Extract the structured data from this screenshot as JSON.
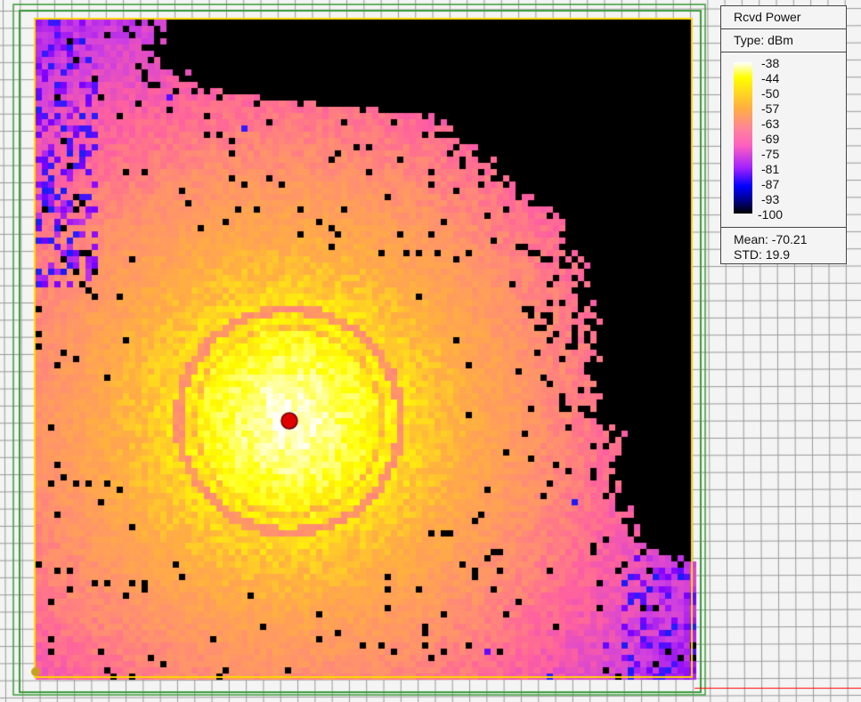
{
  "legend": {
    "title": "Rcvd Power",
    "type": "Type: dBm",
    "ticks": [
      "-38",
      "-44",
      "-50",
      "-57",
      "-63",
      "-69",
      "-75",
      "-81",
      "-87",
      "-93",
      "-100"
    ],
    "mean": "Mean: -70.21",
    "std": "STD: 19.9"
  },
  "colormap": {
    "min": -100,
    "max": -38,
    "stops": [
      [
        -38,
        "#ffffff"
      ],
      [
        -44,
        "#ffff00"
      ],
      [
        -50,
        "#ffb040"
      ],
      [
        -57,
        "#ff9070"
      ],
      [
        -63,
        "#ff60a0"
      ],
      [
        -69,
        "#d040e0"
      ],
      [
        -75,
        "#8000ff"
      ],
      [
        -81,
        "#2020ff"
      ],
      [
        -87,
        "#0000b0"
      ],
      [
        -93,
        "#000050"
      ],
      [
        -100,
        "#000000"
      ]
    ]
  },
  "colors": {
    "grid": "#909090",
    "outline": "#3a9a3a",
    "boundary": "#ffd800",
    "transmitter": "#e00000",
    "axis": "#ff0000"
  }
}
